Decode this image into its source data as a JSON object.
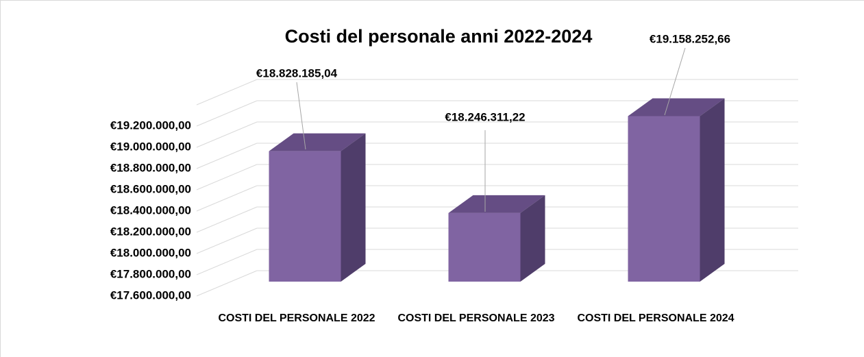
{
  "chart_data": {
    "type": "bar3d",
    "title": "Costi del personale anni 2022-2024",
    "categories": [
      "COSTI DEL PERSONALE 2022",
      "COSTI DEL PERSONALE 2023",
      "COSTI DEL PERSONALE 2024"
    ],
    "values": [
      18828185.04,
      18246311.22,
      19158252.66
    ],
    "value_labels": [
      "€18.828.185,04",
      "€18.246.311,22",
      "€19.158.252,66"
    ],
    "color": "#8064a2",
    "ylim": [
      17600000,
      19400000
    ],
    "yticks": [
      {
        "value": 17600000,
        "label": "€17.600.000,00"
      },
      {
        "value": 17800000,
        "label": "€17.800.000,00"
      },
      {
        "value": 18000000,
        "label": "€18.000.000,00"
      },
      {
        "value": 18200000,
        "label": "€18.200.000,00"
      },
      {
        "value": 18400000,
        "label": "€18.400.000,00"
      },
      {
        "value": 18600000,
        "label": "€18.600.000,00"
      },
      {
        "value": 18800000,
        "label": "€18.800.000,00"
      },
      {
        "value": 19000000,
        "label": "€19.000.000,00"
      },
      {
        "value": 19200000,
        "label": "€19.200.000,00"
      }
    ],
    "grid": true
  }
}
